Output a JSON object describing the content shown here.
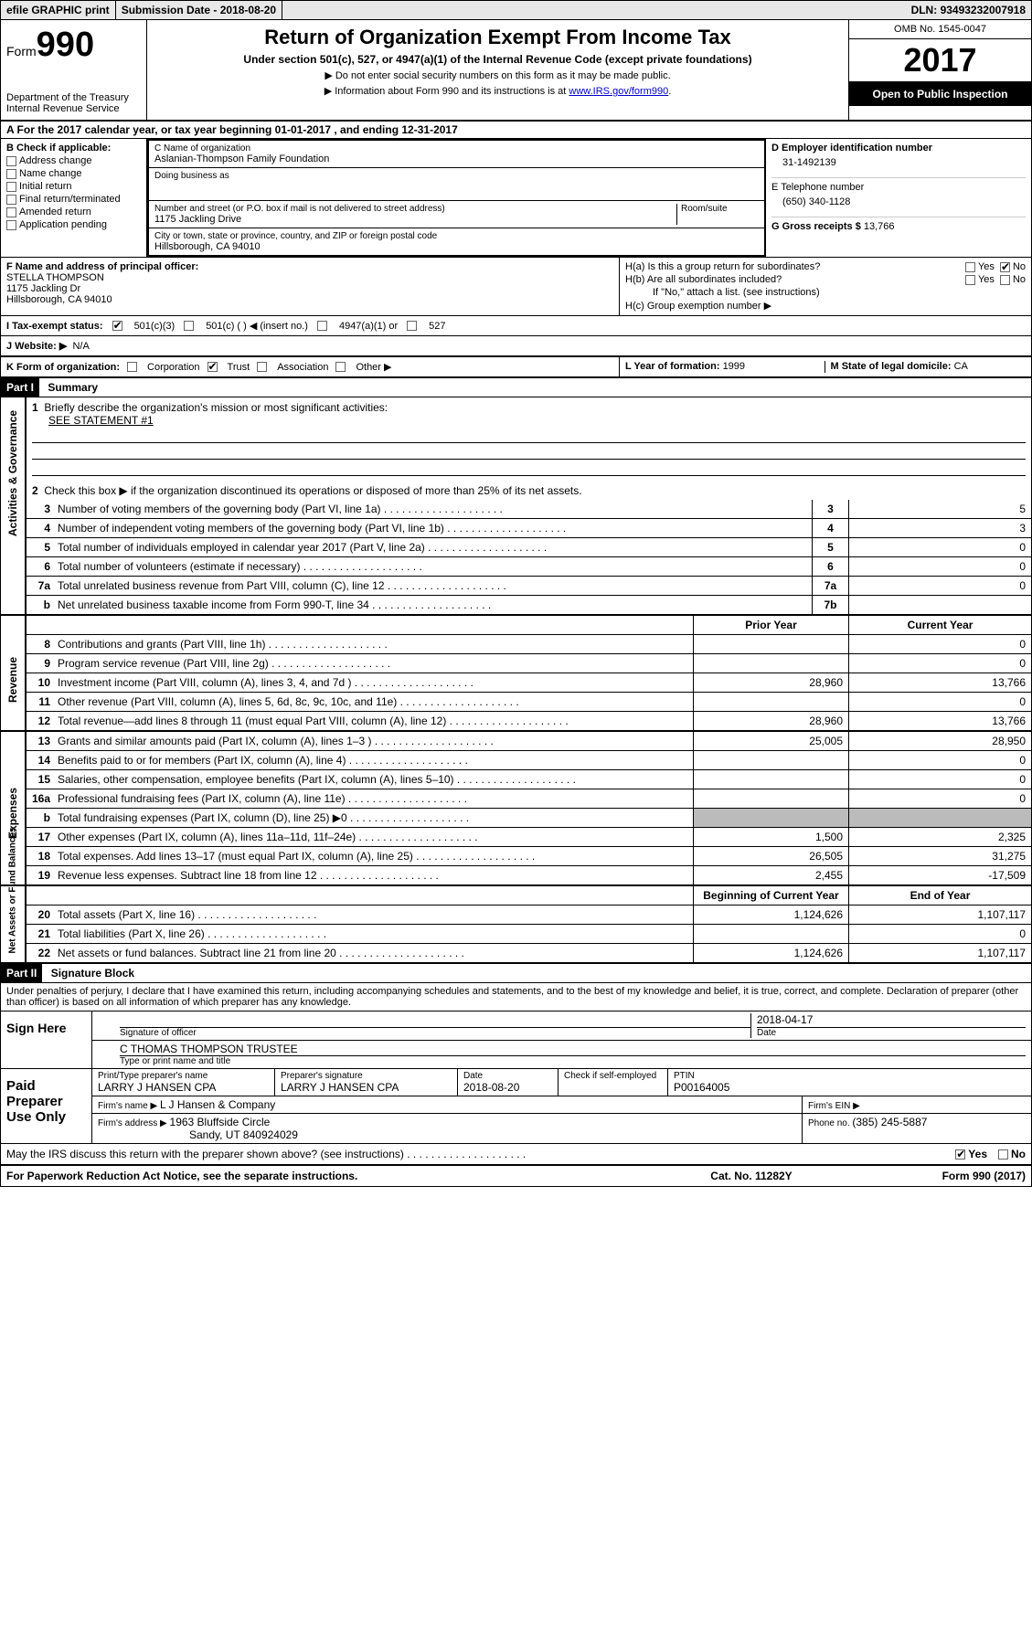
{
  "topbar": {
    "efile": "efile GRAPHIC print",
    "submission_label": "Submission Date - ",
    "submission_date": "2018-08-20",
    "dln_label": "DLN: ",
    "dln": "93493232007918"
  },
  "header": {
    "form_word": "Form",
    "form_num": "990",
    "dept": "Department of the Treasury",
    "irs": "Internal Revenue Service",
    "title": "Return of Organization Exempt From Income Tax",
    "subtitle": "Under section 501(c), 527, or 4947(a)(1) of the Internal Revenue Code (except private foundations)",
    "instr1": "▶ Do not enter social security numbers on this form as it may be made public.",
    "instr2_pre": "▶ Information about Form 990 and its instructions is at ",
    "instr2_link": "www.IRS.gov/form990",
    "omb_label": "OMB No. ",
    "omb": "1545-0047",
    "year": "2017",
    "open": "Open to Public Inspection"
  },
  "section_a": "A  For the 2017 calendar year, or tax year beginning 01-01-2017   , and ending 12-31-2017",
  "box_b": {
    "label": "B Check if applicable:",
    "items": [
      "Address change",
      "Name change",
      "Initial return",
      "Final return/terminated",
      "Amended return",
      "Application pending"
    ]
  },
  "box_c": {
    "name_label": "C Name of organization",
    "name": "Aslanian-Thompson Family Foundation",
    "dba_label": "Doing business as",
    "street_label": "Number and street (or P.O. box if mail is not delivered to street address)",
    "room_label": "Room/suite",
    "street": "1175 Jackling Drive",
    "city_label": "City or town, state or province, country, and ZIP or foreign postal code",
    "city": "Hillsborough, CA  94010"
  },
  "box_d": {
    "label": "D Employer identification number",
    "value": "31-1492139"
  },
  "box_e": {
    "label": "E Telephone number",
    "value": "(650) 340-1128"
  },
  "box_g": {
    "label": "G Gross receipts $ ",
    "value": "13,766"
  },
  "box_f": {
    "label": "F  Name and address of principal officer:",
    "name": "STELLA THOMPSON",
    "addr1": "1175 Jackling Dr",
    "addr2": "Hillsborough, CA  94010"
  },
  "box_h": {
    "a_label": "H(a)  Is this a group return for subordinates?",
    "yes": "Yes",
    "no": "No",
    "b_label": "H(b)  Are all subordinates included?",
    "note": "If \"No,\" attach a list. (see instructions)",
    "c_label": "H(c)  Group exemption number ▶"
  },
  "box_i": {
    "label": "I  Tax-exempt status:",
    "opts": [
      "501(c)(3)",
      "501(c) (   ) ◀ (insert no.)",
      "4947(a)(1) or",
      "527"
    ]
  },
  "box_j": {
    "label": "J  Website: ▶",
    "value": "N/A"
  },
  "box_k": {
    "label": "K Form of organization:",
    "opts": [
      "Corporation",
      "Trust",
      "Association",
      "Other ▶"
    ]
  },
  "box_l": {
    "label": "L Year of formation: ",
    "value": "1999"
  },
  "box_m": {
    "label": "M State of legal domicile: ",
    "value": "CA"
  },
  "part1": {
    "hdr": "Part I",
    "title": "Summary"
  },
  "governance": {
    "side": "Activities & Governance",
    "l1": "Briefly describe the organization's mission or most significant activities:",
    "l1v": "SEE STATEMENT #1",
    "l2": "Check this box ▶        if the organization discontinued its operations or disposed of more than 25% of its net assets.",
    "lines": [
      {
        "n": "3",
        "t": "Number of voting members of the governing body (Part VI, line 1a)",
        "b": "3",
        "v": "5"
      },
      {
        "n": "4",
        "t": "Number of independent voting members of the governing body (Part VI, line 1b)",
        "b": "4",
        "v": "3"
      },
      {
        "n": "5",
        "t": "Total number of individuals employed in calendar year 2017 (Part V, line 2a)",
        "b": "5",
        "v": "0"
      },
      {
        "n": "6",
        "t": "Total number of volunteers (estimate if necessary)",
        "b": "6",
        "v": "0"
      },
      {
        "n": "7a",
        "t": "Total unrelated business revenue from Part VIII, column (C), line 12",
        "b": "7a",
        "v": "0"
      },
      {
        "n": "b",
        "t": "Net unrelated business taxable income from Form 990-T, line 34",
        "b": "7b",
        "v": ""
      }
    ]
  },
  "revenue": {
    "side": "Revenue",
    "hdr_prior": "Prior Year",
    "hdr_curr": "Current Year",
    "lines": [
      {
        "n": "8",
        "t": "Contributions and grants (Part VIII, line 1h)",
        "p": "",
        "c": "0"
      },
      {
        "n": "9",
        "t": "Program service revenue (Part VIII, line 2g)",
        "p": "",
        "c": "0"
      },
      {
        "n": "10",
        "t": "Investment income (Part VIII, column (A), lines 3, 4, and 7d )",
        "p": "28,960",
        "c": "13,766"
      },
      {
        "n": "11",
        "t": "Other revenue (Part VIII, column (A), lines 5, 6d, 8c, 9c, 10c, and 11e)",
        "p": "",
        "c": "0"
      },
      {
        "n": "12",
        "t": "Total revenue—add lines 8 through 11 (must equal Part VIII, column (A), line 12)",
        "p": "28,960",
        "c": "13,766"
      }
    ]
  },
  "expenses": {
    "side": "Expenses",
    "lines": [
      {
        "n": "13",
        "t": "Grants and similar amounts paid (Part IX, column (A), lines 1–3 )",
        "p": "25,005",
        "c": "28,950"
      },
      {
        "n": "14",
        "t": "Benefits paid to or for members (Part IX, column (A), line 4)",
        "p": "",
        "c": "0"
      },
      {
        "n": "15",
        "t": "Salaries, other compensation, employee benefits (Part IX, column (A), lines 5–10)",
        "p": "",
        "c": "0"
      },
      {
        "n": "16a",
        "t": "Professional fundraising fees (Part IX, column (A), line 11e)",
        "p": "",
        "c": "0"
      },
      {
        "n": "b",
        "t": "Total fundraising expenses (Part IX, column (D), line 25) ▶0",
        "p": "SHADE",
        "c": "SHADE"
      },
      {
        "n": "17",
        "t": "Other expenses (Part IX, column (A), lines 11a–11d, 11f–24e)",
        "p": "1,500",
        "c": "2,325"
      },
      {
        "n": "18",
        "t": "Total expenses. Add lines 13–17 (must equal Part IX, column (A), line 25)",
        "p": "26,505",
        "c": "31,275"
      },
      {
        "n": "19",
        "t": "Revenue less expenses. Subtract line 18 from line 12",
        "p": "2,455",
        "c": "-17,509"
      }
    ]
  },
  "netassets": {
    "side": "Net Assets or Fund Balances",
    "hdr_beg": "Beginning of Current Year",
    "hdr_end": "End of Year",
    "lines": [
      {
        "n": "20",
        "t": "Total assets (Part X, line 16)",
        "p": "1,124,626",
        "c": "1,107,117"
      },
      {
        "n": "21",
        "t": "Total liabilities (Part X, line 26)",
        "p": "",
        "c": "0"
      },
      {
        "n": "22",
        "t": "Net assets or fund balances. Subtract line 21 from line 20 .",
        "p": "1,124,626",
        "c": "1,107,117"
      }
    ]
  },
  "part2": {
    "hdr": "Part II",
    "title": "Signature Block"
  },
  "perjury": "Under penalties of perjury, I declare that I have examined this return, including accompanying schedules and statements, and to the best of my knowledge and belief, it is true, correct, and complete. Declaration of preparer (other than officer) is based on all information of which preparer has any knowledge.",
  "sign": {
    "here": "Sign Here",
    "sig_officer": "Signature of officer",
    "date": "Date",
    "date_val": "2018-04-17",
    "name": "C THOMAS THOMPSON  TRUSTEE",
    "name_label": "Type or print name and title"
  },
  "preparer": {
    "label": "Paid Preparer Use Only",
    "print_label": "Print/Type preparer's name",
    "print_name": "LARRY J HANSEN CPA",
    "sig_label": "Preparer's signature",
    "sig_name": "LARRY J HANSEN CPA",
    "date_label": "Date",
    "date": "2018-08-20",
    "check_label": "Check        if self-employed",
    "ptin_label": "PTIN",
    "ptin": "P00164005",
    "firm_name_label": "Firm's name      ▶ ",
    "firm_name": "L J Hansen & Company",
    "firm_ein_label": "Firm's EIN ▶",
    "firm_addr_label": "Firm's address ▶ ",
    "firm_addr1": "1963 Bluffside Circle",
    "firm_addr2": "Sandy, UT  840924029",
    "phone_label": "Phone no. ",
    "phone": "(385) 245-5887"
  },
  "discuss": {
    "text": "May the IRS discuss this return with the preparer shown above? (see instructions)",
    "yes": "Yes",
    "no": "No"
  },
  "footer": {
    "left": "For Paperwork Reduction Act Notice, see the separate instructions.",
    "mid": "Cat. No. 11282Y",
    "right": "Form 990 (2017)"
  }
}
